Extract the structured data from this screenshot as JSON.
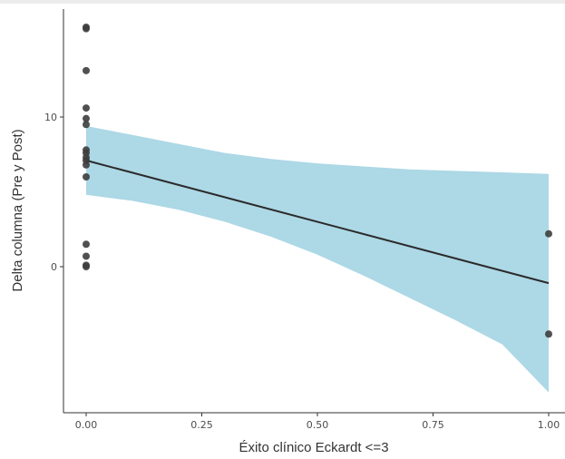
{
  "chart_data": {
    "type": "scatter",
    "xlabel": "Éxito clínico Eckardt <=3",
    "ylabel": "Delta columna (Pre y Post)",
    "xlim": [
      -0.05,
      1.03
    ],
    "ylim": [
      -9.5,
      17
    ],
    "grid": false,
    "x_ticks": [
      {
        "value": 0.0,
        "label": "0.00"
      },
      {
        "value": 0.25,
        "label": "0.25"
      },
      {
        "value": 0.5,
        "label": "0.50"
      },
      {
        "value": 0.75,
        "label": "0.75"
      },
      {
        "value": 1.0,
        "label": "1.00"
      }
    ],
    "y_ticks": [
      {
        "value": 0,
        "label": "0"
      },
      {
        "value": 10,
        "label": "10"
      }
    ],
    "points": [
      {
        "x": 0,
        "y": 16.0
      },
      {
        "x": 0,
        "y": 15.9
      },
      {
        "x": 0,
        "y": 13.1
      },
      {
        "x": 0,
        "y": 10.6
      },
      {
        "x": 0,
        "y": 9.9
      },
      {
        "x": 0,
        "y": 9.5
      },
      {
        "x": 0,
        "y": 7.8
      },
      {
        "x": 0,
        "y": 7.6
      },
      {
        "x": 0,
        "y": 7.3
      },
      {
        "x": 0,
        "y": 7.1
      },
      {
        "x": 0,
        "y": 6.8
      },
      {
        "x": 0,
        "y": 6.0
      },
      {
        "x": 0,
        "y": 1.5
      },
      {
        "x": 0,
        "y": 0.7
      },
      {
        "x": 0,
        "y": 0.1
      },
      {
        "x": 0,
        "y": 0.0
      },
      {
        "x": 1,
        "y": 2.2
      },
      {
        "x": 1,
        "y": -4.5
      }
    ],
    "fit": {
      "x": [
        0,
        1
      ],
      "y": [
        7.1,
        -1.1
      ]
    },
    "confidence_band": {
      "x": [
        0,
        0.1,
        0.2,
        0.3,
        0.4,
        0.5,
        0.6,
        0.7,
        0.8,
        0.9,
        1.0
      ],
      "lower": [
        4.8,
        4.4,
        3.8,
        3.0,
        2.0,
        0.8,
        -0.6,
        -2.1,
        -3.6,
        -5.2,
        -8.4
      ],
      "upper": [
        9.4,
        8.8,
        8.2,
        7.6,
        7.2,
        6.9,
        6.7,
        6.5,
        6.4,
        6.3,
        6.2
      ]
    },
    "colors": {
      "points": "#3d3d3d",
      "fit_line": "#2b2b2b",
      "band": "#add8e6",
      "axis": "#333333"
    }
  }
}
